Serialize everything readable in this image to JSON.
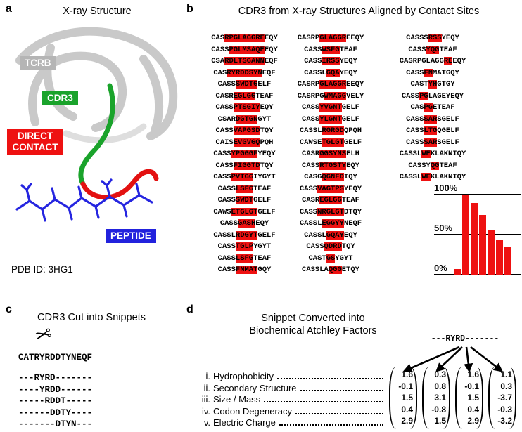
{
  "panels": {
    "a": {
      "label": "a",
      "title": "X-ray Structure",
      "tags": {
        "tcrb": {
          "text": "TCRB",
          "bg": "#b5b5b5"
        },
        "cdr3": {
          "text": "CDR3",
          "bg": "#1aa32b"
        },
        "direct_contact": {
          "text": "DIRECT CONTACT",
          "bg": "#ee1111"
        },
        "peptide": {
          "text": "PEPTIDE",
          "bg": "#2222dd"
        }
      },
      "pdb_id": "PDB ID: 3HG1",
      "colors": {
        "ribbon": "#c9c9c9",
        "cdr3_loop": "#1aa32b",
        "contact": "#e31111",
        "peptide": "#2525e0"
      }
    },
    "b": {
      "label": "b",
      "title": "CDR3 from X-ray Structures Aligned by Contact Sites",
      "highlight_color": "#ee1111",
      "columns": [
        [
          "CAS[RPGLAGGRE]EQY",
          "CASS[PGLMSAQE]EQY",
          "CSA[RDLTSGANN]EQF",
          "CAS[RYRDDSYN]EQF",
          "CASS[SWDTG]ELF",
          "CASR[EGLGG]TEAF",
          "CASS[PTSGIY]EQY",
          "CSAR[DGTGN]GYT",
          "CASS[VAPGSD]TQY",
          "CAIS[EVGVGQ]PQH",
          "CASS[YPGGGF]YEQY",
          "CASS[FIGGTD]TQY",
          "CASS[PVTGG]IYGYT",
          "CASS[LSFG]TEAF",
          "CASS[SWDT]GELF",
          "CAWS[ETGLGT]GELF",
          "CASS[GASH]EQY",
          "CASSL[RDGYT]GELF",
          "CASS[TGLP]YGYT",
          "CASS[LSFG]TEAF",
          "CASS[FNMAT]GQY"
        ],
        [
          "CASRP[GLAGGR]EEQY",
          "CASS[WSFG]TEAF",
          "CASS[IRSS]YEQY",
          "CASSL[GQA]YEQY",
          "CASRP[GLAGGR]EEQY",
          "CASRPG[WMAGG]VELY",
          "CASS[YVGNT]GELF",
          "CASS[YLGNT]GELF",
          "CASSL[RGRGD]QPQH",
          "CAWSE[TGLGT]GELF",
          "CASR[GGSYNS]ELH",
          "CASS[RTGSTY]EQY",
          "CASG[QGNFD]IQY",
          "CASS[VAGTPS]YEQY",
          "CASR[EGLGG]TEAF",
          "CASS[NRGLGT]DTQY",
          "CASSL[EGGYY]NEQF",
          "CASSL[GQAY]EQY",
          "CASS[QDRD]TQY",
          "CAST[GS]YGYT",
          "CASSLA[QGG]ETQY"
        ],
        [
          "CASSS[RSS]YEQY",
          "CASS[YQG]TEAF",
          "CASRPGLAGG[RE]EQY",
          "CASS[FN]MATGQY",
          "CAST[YH]GTGY",
          "CASS[PG]LAGEYEQY",
          "CAS[PG]ETEAF",
          "CASS[SAR]SGELF",
          "CASS[LTG]QGELF",
          "CASS[SAR]SGELF",
          "CASSL[WE]KLAKNIQY",
          "CASSY[QG]TEAF",
          "CASSL[WE]KLAKNIQY"
        ]
      ],
      "histogram": {
        "axis_labels": [
          "100%",
          "50%",
          "0%"
        ],
        "values": [
          8,
          100,
          90,
          75,
          57,
          45,
          35
        ],
        "bar_color": "#ee1111"
      }
    },
    "c": {
      "label": "c",
      "title": "CDR3 Cut into Snippets",
      "scissors_icon": "✂",
      "full_sequence": "CATRYRDDTYNEQF",
      "snippets": [
        "---RYRD-------",
        "----YRDD------",
        "-----RDDT-----",
        "------DDTY----",
        "-------DTYN---"
      ]
    },
    "d": {
      "label": "d",
      "title_line1": "Snippet Converted into",
      "title_line2": "Biochemical Atchley Factors",
      "snippet": "---RYRD-------",
      "factors": [
        {
          "n": "i.",
          "t": "Hydrophobicity"
        },
        {
          "n": "ii.",
          "t": "Secondary Structure"
        },
        {
          "n": "iii.",
          "t": "Size / Mass"
        },
        {
          "n": "iv.",
          "t": "Codon Degeneracy"
        },
        {
          "n": "v.",
          "t": "Electric Charge"
        }
      ],
      "vectors": [
        [
          1.6,
          -0.1,
          1.5,
          0.4,
          2.9
        ],
        [
          0.3,
          0.8,
          3.1,
          -0.8,
          1.5
        ],
        [
          1.6,
          -0.1,
          1.5,
          0.4,
          2.9
        ],
        [
          1.1,
          0.3,
          -3.7,
          -0.3,
          -3.2
        ]
      ]
    }
  },
  "chart_data": {
    "type": "bar",
    "values": [
      8,
      100,
      90,
      75,
      57,
      45,
      35
    ],
    "ylim": [
      0,
      100
    ],
    "yticks": [
      "0%",
      "50%",
      "100%"
    ],
    "bar_color": "#ee1111",
    "grid": "horizontal lines at 0%, 50%, 100%",
    "legend": "none"
  }
}
